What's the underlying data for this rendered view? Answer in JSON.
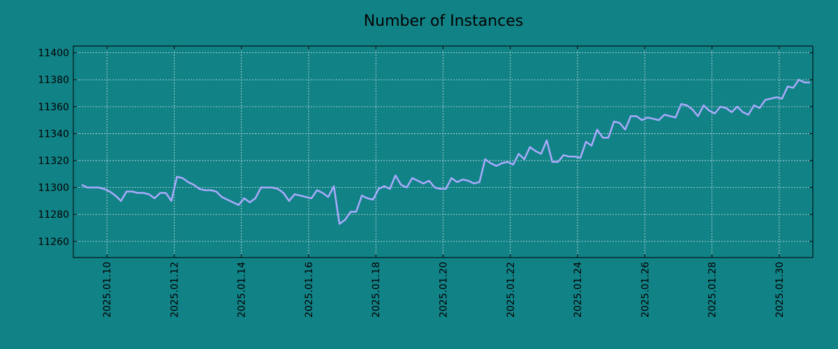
{
  "chart_data": {
    "type": "line",
    "title": "Number of Instances",
    "xlabel": "",
    "ylabel": "",
    "x_range": [
      "2025.01.09",
      "2025.01.31"
    ],
    "ylim": [
      11248,
      11405
    ],
    "x_ticks": [
      "2025.01.10",
      "2025.01.12",
      "2025.01.14",
      "2025.01.16",
      "2025.01.18",
      "2025.01.20",
      "2025.01.22",
      "2025.01.24",
      "2025.01.26",
      "2025.01.28",
      "2025.01.30"
    ],
    "y_ticks": [
      11260,
      11280,
      11300,
      11320,
      11340,
      11360,
      11380,
      11400
    ],
    "grid": true,
    "series": [
      {
        "color": "#aaaaff",
        "points": [
          [
            "2025-01-09 06:00",
            11302
          ],
          [
            "2025-01-09 10:00",
            11300
          ],
          [
            "2025-01-09 14:00",
            11300
          ],
          [
            "2025-01-09 18:00",
            11300
          ],
          [
            "2025-01-09 22:00",
            11299
          ],
          [
            "2025-01-10 02:00",
            11297
          ],
          [
            "2025-01-10 06:00",
            11294
          ],
          [
            "2025-01-10 10:00",
            11290
          ],
          [
            "2025-01-10 14:00",
            11297
          ],
          [
            "2025-01-10 18:00",
            11297
          ],
          [
            "2025-01-10 22:00",
            11296
          ],
          [
            "2025-01-11 02:00",
            11296
          ],
          [
            "2025-01-11 06:00",
            11295
          ],
          [
            "2025-01-11 10:00",
            11292
          ],
          [
            "2025-01-11 14:00",
            11296
          ],
          [
            "2025-01-11 18:00",
            11296
          ],
          [
            "2025-01-11 22:00",
            11290
          ],
          [
            "2025-01-12 02:00",
            11308
          ],
          [
            "2025-01-12 06:00",
            11307
          ],
          [
            "2025-01-12 10:00",
            11304
          ],
          [
            "2025-01-12 14:00",
            11302
          ],
          [
            "2025-01-12 18:00",
            11299
          ],
          [
            "2025-01-12 22:00",
            11298
          ],
          [
            "2025-01-13 02:00",
            11298
          ],
          [
            "2025-01-13 06:00",
            11297
          ],
          [
            "2025-01-13 10:00",
            11293
          ],
          [
            "2025-01-13 14:00",
            11291
          ],
          [
            "2025-01-13 18:00",
            11289
          ],
          [
            "2025-01-13 22:00",
            11287
          ],
          [
            "2025-01-14 02:00",
            11292
          ],
          [
            "2025-01-14 06:00",
            11289
          ],
          [
            "2025-01-14 10:00",
            11292
          ],
          [
            "2025-01-14 14:00",
            11300
          ],
          [
            "2025-01-14 18:00",
            11300
          ],
          [
            "2025-01-14 22:00",
            11300
          ],
          [
            "2025-01-15 02:00",
            11299
          ],
          [
            "2025-01-15 06:00",
            11296
          ],
          [
            "2025-01-15 10:00",
            11290
          ],
          [
            "2025-01-15 14:00",
            11295
          ],
          [
            "2025-01-15 18:00",
            11294
          ],
          [
            "2025-01-15 22:00",
            11293
          ],
          [
            "2025-01-16 02:00",
            11292
          ],
          [
            "2025-01-16 06:00",
            11298
          ],
          [
            "2025-01-16 10:00",
            11296
          ],
          [
            "2025-01-16 14:00",
            11293
          ],
          [
            "2025-01-16 18:00",
            11301
          ],
          [
            "2025-01-16 22:00",
            11273
          ],
          [
            "2025-01-17 02:00",
            11276
          ],
          [
            "2025-01-17 06:00",
            11282
          ],
          [
            "2025-01-17 10:00",
            11282
          ],
          [
            "2025-01-17 14:00",
            11294
          ],
          [
            "2025-01-17 18:00",
            11292
          ],
          [
            "2025-01-17 22:00",
            11291
          ],
          [
            "2025-01-18 02:00",
            11299
          ],
          [
            "2025-01-18 06:00",
            11301
          ],
          [
            "2025-01-18 10:00",
            11299
          ],
          [
            "2025-01-18 14:00",
            11309
          ],
          [
            "2025-01-18 18:00",
            11302
          ],
          [
            "2025-01-18 22:00",
            11300
          ],
          [
            "2025-01-19 02:00",
            11307
          ],
          [
            "2025-01-19 06:00",
            11305
          ],
          [
            "2025-01-19 10:00",
            11303
          ],
          [
            "2025-01-19 14:00",
            11305
          ],
          [
            "2025-01-19 18:00",
            11300
          ],
          [
            "2025-01-19 22:00",
            11299
          ],
          [
            "2025-01-20 02:00",
            11299
          ],
          [
            "2025-01-20 06:00",
            11307
          ],
          [
            "2025-01-20 10:00",
            11304
          ],
          [
            "2025-01-20 14:00",
            11306
          ],
          [
            "2025-01-20 18:00",
            11305
          ],
          [
            "2025-01-20 22:00",
            11303
          ],
          [
            "2025-01-21 02:00",
            11304
          ],
          [
            "2025-01-21 06:00",
            11321
          ],
          [
            "2025-01-21 10:00",
            11318
          ],
          [
            "2025-01-21 14:00",
            11316
          ],
          [
            "2025-01-21 18:00",
            11318
          ],
          [
            "2025-01-21 22:00",
            11319
          ],
          [
            "2025-01-22 02:00",
            11317
          ],
          [
            "2025-01-22 06:00",
            11325
          ],
          [
            "2025-01-22 10:00",
            11321
          ],
          [
            "2025-01-22 14:00",
            11330
          ],
          [
            "2025-01-22 18:00",
            11327
          ],
          [
            "2025-01-22 22:00",
            11325
          ],
          [
            "2025-01-23 02:00",
            11335
          ],
          [
            "2025-01-23 06:00",
            11319
          ],
          [
            "2025-01-23 10:00",
            11319
          ],
          [
            "2025-01-23 14:00",
            11324
          ],
          [
            "2025-01-23 18:00",
            11323
          ],
          [
            "2025-01-23 22:00",
            11323
          ],
          [
            "2025-01-24 02:00",
            11322
          ],
          [
            "2025-01-24 06:00",
            11334
          ],
          [
            "2025-01-24 10:00",
            11331
          ],
          [
            "2025-01-24 14:00",
            11343
          ],
          [
            "2025-01-24 18:00",
            11337
          ],
          [
            "2025-01-24 22:00",
            11337
          ],
          [
            "2025-01-25 02:00",
            11349
          ],
          [
            "2025-01-25 06:00",
            11348
          ],
          [
            "2025-01-25 10:00",
            11343
          ],
          [
            "2025-01-25 14:00",
            11353
          ],
          [
            "2025-01-25 18:00",
            11353
          ],
          [
            "2025-01-25 22:00",
            11350
          ],
          [
            "2025-01-26 02:00",
            11352
          ],
          [
            "2025-01-26 06:00",
            11351
          ],
          [
            "2025-01-26 10:00",
            11350
          ],
          [
            "2025-01-26 14:00",
            11354
          ],
          [
            "2025-01-26 18:00",
            11353
          ],
          [
            "2025-01-26 22:00",
            11352
          ],
          [
            "2025-01-27 02:00",
            11362
          ],
          [
            "2025-01-27 06:00",
            11361
          ],
          [
            "2025-01-27 10:00",
            11358
          ],
          [
            "2025-01-27 14:00",
            11353
          ],
          [
            "2025-01-27 18:00",
            11361
          ],
          [
            "2025-01-27 22:00",
            11357
          ],
          [
            "2025-01-28 02:00",
            11355
          ],
          [
            "2025-01-28 06:00",
            11360
          ],
          [
            "2025-01-28 10:00",
            11359
          ],
          [
            "2025-01-28 14:00",
            11356
          ],
          [
            "2025-01-28 18:00",
            11360
          ],
          [
            "2025-01-28 22:00",
            11356
          ],
          [
            "2025-01-29 02:00",
            11354
          ],
          [
            "2025-01-29 06:00",
            11361
          ],
          [
            "2025-01-29 10:00",
            11359
          ],
          [
            "2025-01-29 14:00",
            11365
          ],
          [
            "2025-01-29 18:00",
            11366
          ],
          [
            "2025-01-29 22:00",
            11367
          ],
          [
            "2025-01-30 02:00",
            11366
          ],
          [
            "2025-01-30 06:00",
            11375
          ],
          [
            "2025-01-30 10:00",
            11374
          ],
          [
            "2025-01-30 14:00",
            11380
          ],
          [
            "2025-01-30 18:00",
            11378
          ],
          [
            "2025-01-30 22:00",
            11378
          ]
        ]
      }
    ]
  },
  "colors": {
    "background": "#118286",
    "line": "#aaaaff",
    "grid": "#cfe3e3",
    "axes": "#000000"
  }
}
